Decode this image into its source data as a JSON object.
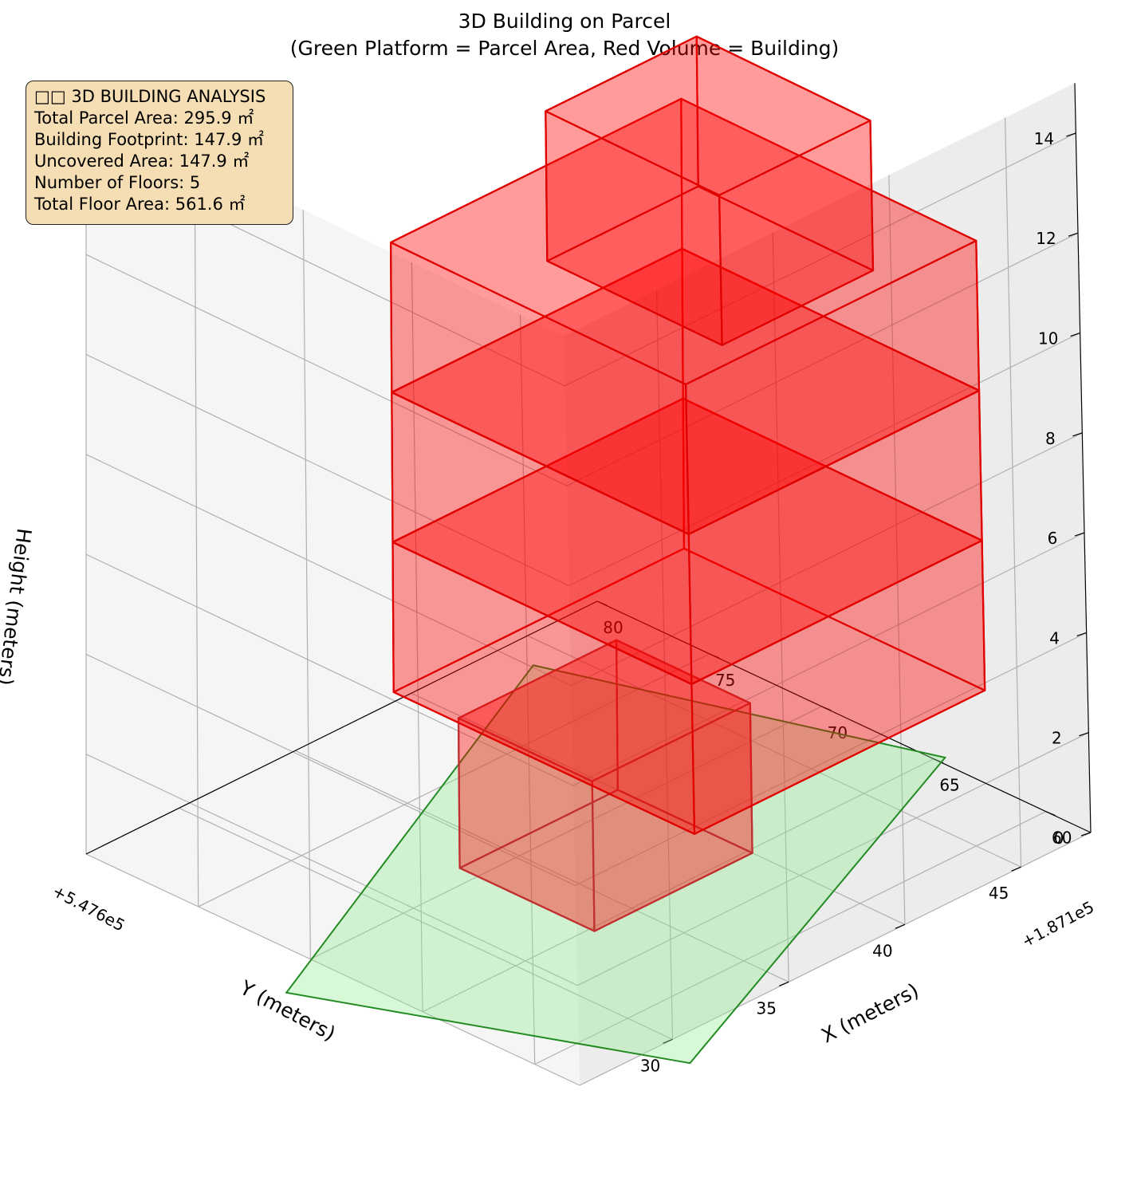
{
  "chart_data": {
    "type": "3d-box",
    "title": "3D Building on Parcel",
    "subtitle": "(Green Platform = Parcel Area, Red Volume = Building)",
    "xlabel": "X (meters)",
    "ylabel": "Y (meters)",
    "zlabel": "Height (meters)",
    "x_offset_label": "+1.871e5",
    "y_offset_label": "+5.476e5",
    "x_ticks": [
      "60",
      "65",
      "70",
      "75",
      "80"
    ],
    "y_ticks": [
      "30",
      "35",
      "40",
      "45"
    ],
    "z_ticks": [
      "0",
      "2",
      "4",
      "6",
      "8",
      "10",
      "12",
      "14"
    ],
    "grid": true,
    "parcel": {
      "color": "#90ee90",
      "edge_color": "#228b22",
      "corners_xy": [
        [
          56.5,
          29.3
        ],
        [
          69.0,
          24.0
        ],
        [
          78.5,
          43.8
        ],
        [
          64.8,
          48.3
        ]
      ]
    },
    "building": {
      "color": "#ff0000",
      "floors": 5,
      "levels_m": [
        0,
        3,
        6,
        9,
        12,
        15
      ],
      "lower_block": {
        "x": [
          64.8,
          70.8
        ],
        "y": [
          33.2,
          40.0
        ],
        "z": [
          0,
          3
        ]
      },
      "middle_block": {
        "x": [
          60.0,
          73.5
        ],
        "y": [
          33.0,
          45.5
        ],
        "z": [
          3,
          12
        ]
      },
      "top_block": {
        "x": [
          61.0,
          69.0
        ],
        "y": [
          35.5,
          42.0
        ],
        "z": [
          12,
          15
        ]
      }
    }
  },
  "info_box": {
    "title": "□□ 3D BUILDING ANALYSIS",
    "lines": [
      "Total Parcel Area: 295.9 ㎡",
      "Building Footprint: 147.9 ㎡",
      "Uncovered Area: 147.9 ㎡",
      "Number of Floors: 5",
      "Total Floor Area: 561.6 ㎡"
    ]
  }
}
